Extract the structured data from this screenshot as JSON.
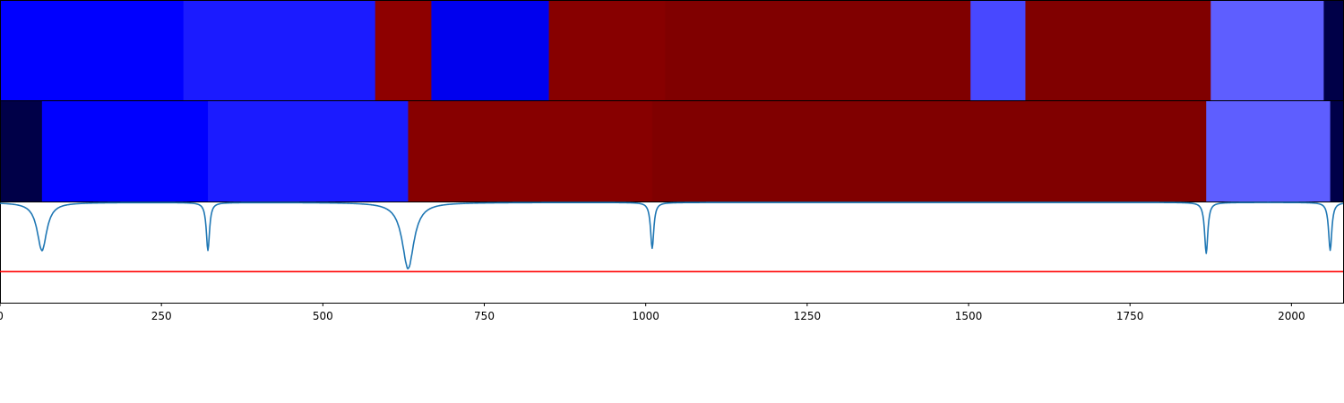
{
  "chart_data": [
    {
      "type": "heatmap",
      "x_range": [
        0,
        2080
      ],
      "segments": [
        {
          "x0": 0,
          "x1": 284,
          "color": "#0000ff"
        },
        {
          "x0": 284,
          "x1": 581,
          "color": "#1b1bff"
        },
        {
          "x0": 581,
          "x1": 668,
          "color": "#8e0000"
        },
        {
          "x0": 668,
          "x1": 850,
          "color": "#0000ee"
        },
        {
          "x0": 850,
          "x1": 1030,
          "color": "#870000"
        },
        {
          "x0": 1030,
          "x1": 1503,
          "color": "#800000"
        },
        {
          "x0": 1503,
          "x1": 1588,
          "color": "#4848ff"
        },
        {
          "x0": 1588,
          "x1": 1875,
          "color": "#800000"
        },
        {
          "x0": 1875,
          "x1": 2050,
          "color": "#5e5eff"
        },
        {
          "x0": 2050,
          "x1": 2080,
          "color": "#000048"
        }
      ]
    },
    {
      "type": "heatmap",
      "x_range": [
        0,
        2080
      ],
      "segments": [
        {
          "x0": 0,
          "x1": 65,
          "color": "#000048"
        },
        {
          "x0": 65,
          "x1": 322,
          "color": "#0000ff"
        },
        {
          "x0": 322,
          "x1": 632,
          "color": "#1b1bff"
        },
        {
          "x0": 632,
          "x1": 1010,
          "color": "#870000"
        },
        {
          "x0": 1010,
          "x1": 1868,
          "color": "#800000"
        },
        {
          "x0": 1868,
          "x1": 2060,
          "color": "#5e5eff"
        },
        {
          "x0": 2060,
          "x1": 2080,
          "color": "#000048"
        }
      ]
    },
    {
      "type": "line",
      "x_range": [
        0,
        2080
      ],
      "y_range": [
        0,
        1
      ],
      "line_color": "#1f77b4",
      "threshold": 0.31,
      "threshold_color": "#ff0000",
      "dips": [
        {
          "x": 65,
          "depth": 0.48,
          "width": 9
        },
        {
          "x": 322,
          "depth": 0.48,
          "width": 3
        },
        {
          "x": 632,
          "depth": 0.66,
          "width": 11
        },
        {
          "x": 1010,
          "depth": 0.46,
          "width": 3
        },
        {
          "x": 1868,
          "depth": 0.51,
          "width": 3
        },
        {
          "x": 2060,
          "depth": 0.48,
          "width": 3
        }
      ],
      "x_ticks": [
        0,
        250,
        500,
        750,
        1000,
        1250,
        1500,
        1750,
        2000
      ]
    }
  ]
}
